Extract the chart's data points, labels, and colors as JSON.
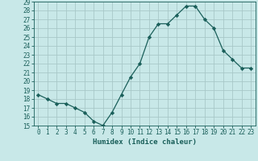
{
  "title": "",
  "xlabel": "Humidex (Indice chaleur)",
  "ylabel": "",
  "x_values": [
    0,
    1,
    2,
    3,
    4,
    5,
    6,
    7,
    8,
    9,
    10,
    11,
    12,
    13,
    14,
    15,
    16,
    17,
    18,
    19,
    20,
    21,
    22,
    23
  ],
  "y_values": [
    18.5,
    18.0,
    17.5,
    17.5,
    17.0,
    16.5,
    15.5,
    15.0,
    16.5,
    18.5,
    20.5,
    22.0,
    25.0,
    26.5,
    26.5,
    27.5,
    28.5,
    28.5,
    27.0,
    26.0,
    23.5,
    22.5,
    21.5,
    21.5
  ],
  "line_color": "#1a5f5a",
  "marker": "D",
  "marker_size": 2.2,
  "bg_color": "#c8e8e8",
  "grid_color": "#a8c8c8",
  "ylim": [
    15,
    29
  ],
  "yticks": [
    15,
    16,
    17,
    18,
    19,
    20,
    21,
    22,
    23,
    24,
    25,
    26,
    27,
    28,
    29
  ],
  "xlim": [
    -0.5,
    23.5
  ],
  "tick_color": "#1a5f5a",
  "label_color": "#1a5f5a",
  "font_size": 5.5,
  "xlabel_fontsize": 6.5,
  "linewidth": 0.9
}
